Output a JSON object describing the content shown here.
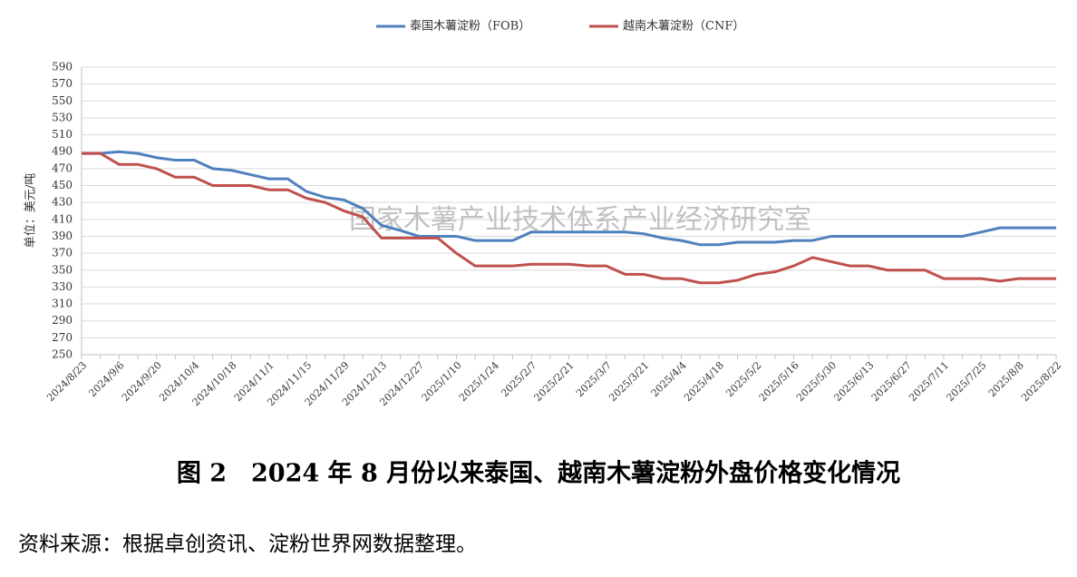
{
  "chart_data": {
    "type": "line",
    "categories": [
      "2024/8/23",
      null,
      "2024/9/6",
      null,
      "2024/9/20",
      null,
      "2024/10/4",
      null,
      "2024/10/18",
      null,
      "2024/11/1",
      null,
      "2024/11/15",
      null,
      "2024/11/29",
      null,
      "2024/12/13",
      null,
      "2024/12/27",
      null,
      "2025/1/10",
      null,
      "2025/1/24",
      null,
      "2025/2/7",
      null,
      "2025/2/21",
      null,
      "2025/3/7",
      null,
      "2025/3/21",
      null,
      "2025/4/4",
      null,
      "2025/4/18",
      null,
      "2025/5/2",
      null,
      "2025/5/16",
      null,
      "2025/5/30",
      null,
      "2025/6/13",
      null,
      "2025/6/27",
      null,
      "2025/7/11",
      null,
      "2025/7/25",
      null,
      "2025/8/8",
      null,
      "2025/8/22"
    ],
    "series": [
      {
        "name": "泰国木薯淀粉（FOB）",
        "color": "#4f81bd",
        "values": [
          488,
          488,
          490,
          488,
          483,
          480,
          480,
          470,
          468,
          463,
          458,
          458,
          443,
          436,
          433,
          423,
          403,
          397,
          390,
          390,
          390,
          385,
          385,
          385,
          395,
          395,
          395,
          395,
          395,
          395,
          393,
          388,
          385,
          380,
          380,
          383,
          383,
          383,
          385,
          385,
          390,
          390,
          390,
          390,
          390,
          390,
          390,
          390,
          395,
          400,
          400,
          400,
          400
        ]
      },
      {
        "name": "越南木薯淀粉（CNF）",
        "color": "#c0504d",
        "values": [
          488,
          488,
          475,
          475,
          470,
          460,
          460,
          450,
          450,
          450,
          445,
          445,
          435,
          430,
          420,
          413,
          388,
          388,
          388,
          388,
          370,
          355,
          355,
          355,
          357,
          357,
          357,
          355,
          355,
          345,
          345,
          340,
          340,
          335,
          335,
          338,
          345,
          348,
          355,
          365,
          360,
          355,
          355,
          350,
          350,
          350,
          340,
          340,
          340,
          337,
          340,
          340,
          340
        ]
      }
    ],
    "ylabel": "单位：美元/吨",
    "ylim": [
      250,
      590
    ],
    "yticks": [
      250,
      270,
      290,
      310,
      330,
      350,
      370,
      390,
      410,
      430,
      450,
      470,
      490,
      510,
      530,
      550,
      570,
      590
    ],
    "grid": true,
    "legend": "top",
    "watermark": "国家木薯产业技术体系产业经济研究室"
  },
  "caption": "图 2　2024 年 8 月份以来泰国、越南木薯淀粉外盘价格变化情况",
  "source": "资料来源：根据卓创资讯、淀粉世界网数据整理。"
}
